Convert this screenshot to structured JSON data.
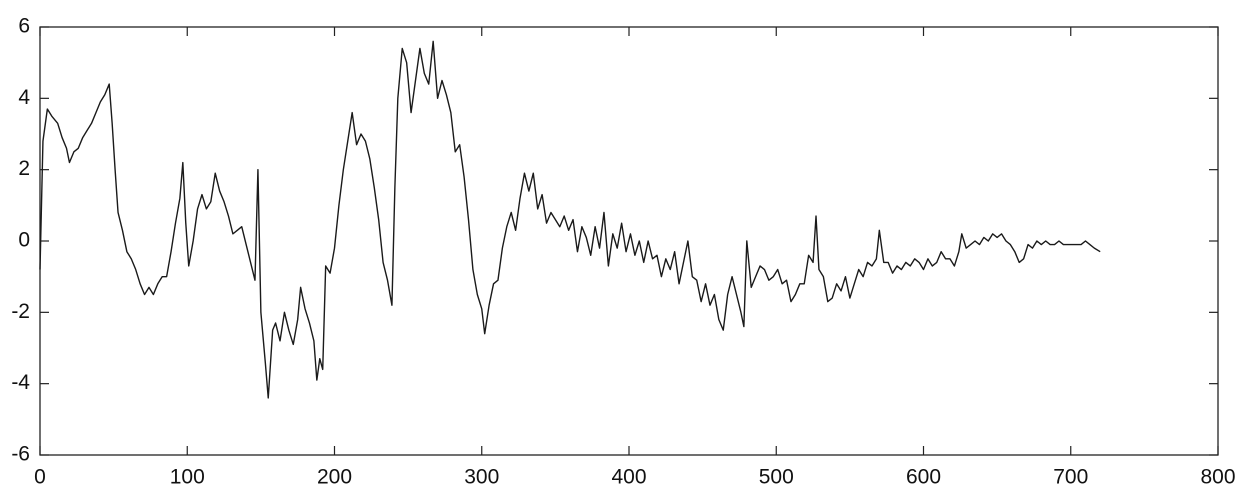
{
  "chart_data": {
    "type": "line",
    "color": "#1a1a1a",
    "x": [
      0,
      2,
      5,
      8,
      12,
      15,
      18,
      20,
      23,
      26,
      29,
      32,
      35,
      38,
      41,
      44,
      47,
      49,
      51,
      53,
      56,
      59,
      62,
      65,
      68,
      71,
      74,
      77,
      80,
      83,
      86,
      89,
      92,
      95,
      97,
      99,
      101,
      104,
      107,
      110,
      113,
      116,
      119,
      122,
      125,
      128,
      131,
      134,
      137,
      140,
      143,
      146,
      148,
      150,
      153,
      155,
      158,
      160,
      163,
      166,
      169,
      172,
      175,
      177,
      180,
      183,
      186,
      188,
      190,
      192,
      194,
      197,
      200,
      203,
      206,
      209,
      212,
      215,
      218,
      221,
      224,
      227,
      230,
      233,
      236,
      239,
      241,
      243,
      246,
      249,
      252,
      255,
      258,
      261,
      264,
      267,
      270,
      273,
      276,
      279,
      282,
      285,
      288,
      291,
      294,
      297,
      300,
      302,
      305,
      308,
      311,
      314,
      317,
      320,
      323,
      326,
      329,
      332,
      335,
      338,
      341,
      344,
      347,
      350,
      353,
      356,
      359,
      362,
      365,
      368,
      371,
      374,
      377,
      380,
      383,
      386,
      389,
      392,
      395,
      398,
      401,
      404,
      407,
      410,
      413,
      416,
      419,
      422,
      425,
      428,
      431,
      434,
      437,
      440,
      443,
      446,
      449,
      452,
      455,
      458,
      461,
      464,
      467,
      470,
      473,
      476,
      478,
      480,
      483,
      486,
      489,
      492,
      495,
      498,
      501,
      504,
      507,
      510,
      513,
      516,
      519,
      522,
      525,
      527,
      529,
      532,
      535,
      538,
      541,
      544,
      547,
      550,
      553,
      556,
      559,
      562,
      565,
      568,
      570,
      573,
      576,
      579,
      582,
      585,
      588,
      591,
      594,
      597,
      600,
      603,
      606,
      609,
      612,
      615,
      618,
      621,
      624,
      626,
      629,
      632,
      635,
      638,
      641,
      644,
      647,
      650,
      653,
      656,
      659,
      662,
      665,
      668,
      671,
      674,
      677,
      680,
      683,
      686,
      689,
      692,
      695,
      698,
      701,
      704,
      707,
      710,
      713,
      716,
      720
    ],
    "values": [
      -0.8,
      2.8,
      3.7,
      3.5,
      3.3,
      2.9,
      2.6,
      2.2,
      2.5,
      2.6,
      2.9,
      3.1,
      3.3,
      3.6,
      3.9,
      4.1,
      4.4,
      3.3,
      2.0,
      0.8,
      0.3,
      -0.3,
      -0.5,
      -0.8,
      -1.2,
      -1.5,
      -1.3,
      -1.5,
      -1.2,
      -1.0,
      -1.0,
      -0.3,
      0.5,
      1.2,
      2.2,
      0.5,
      -0.7,
      0.0,
      0.9,
      1.3,
      0.9,
      1.1,
      1.9,
      1.4,
      1.1,
      0.7,
      0.2,
      0.3,
      0.4,
      -0.1,
      -0.6,
      -1.1,
      2.0,
      -2.0,
      -3.4,
      -4.4,
      -2.5,
      -2.3,
      -2.8,
      -2.0,
      -2.5,
      -2.9,
      -2.2,
      -1.3,
      -1.9,
      -2.3,
      -2.8,
      -3.9,
      -3.3,
      -3.6,
      -0.7,
      -0.9,
      -0.2,
      1.0,
      2.0,
      2.8,
      3.6,
      2.7,
      3.0,
      2.8,
      2.3,
      1.5,
      0.6,
      -0.6,
      -1.1,
      -1.8,
      1.5,
      4.0,
      5.4,
      5.0,
      3.6,
      4.5,
      5.4,
      4.7,
      4.4,
      5.6,
      4.0,
      4.5,
      4.1,
      3.6,
      2.5,
      2.7,
      1.8,
      0.6,
      -0.8,
      -1.5,
      -1.9,
      -2.6,
      -1.8,
      -1.2,
      -1.1,
      -0.2,
      0.4,
      0.8,
      0.3,
      1.2,
      1.9,
      1.4,
      1.9,
      0.9,
      1.3,
      0.5,
      0.8,
      0.6,
      0.4,
      0.7,
      0.3,
      0.6,
      -0.3,
      0.4,
      0.1,
      -0.4,
      0.4,
      -0.2,
      0.8,
      -0.7,
      0.2,
      -0.2,
      0.5,
      -0.3,
      0.2,
      -0.4,
      0.0,
      -0.6,
      0.0,
      -0.5,
      -0.4,
      -1.0,
      -0.5,
      -0.8,
      -0.3,
      -1.2,
      -0.6,
      0.0,
      -1.0,
      -1.1,
      -1.7,
      -1.2,
      -1.8,
      -1.5,
      -2.2,
      -2.5,
      -1.5,
      -1.0,
      -1.5,
      -2.0,
      -2.4,
      0.0,
      -1.3,
      -1.0,
      -0.7,
      -0.8,
      -1.1,
      -1.0,
      -0.8,
      -1.2,
      -1.1,
      -1.7,
      -1.5,
      -1.2,
      -1.2,
      -0.4,
      -0.6,
      0.7,
      -0.8,
      -1.0,
      -1.7,
      -1.6,
      -1.2,
      -1.4,
      -1.0,
      -1.6,
      -1.2,
      -0.8,
      -1.0,
      -0.6,
      -0.7,
      -0.5,
      0.3,
      -0.6,
      -0.6,
      -0.9,
      -0.7,
      -0.8,
      -0.6,
      -0.7,
      -0.5,
      -0.6,
      -0.8,
      -0.5,
      -0.7,
      -0.6,
      -0.3,
      -0.5,
      -0.5,
      -0.7,
      -0.3,
      0.2,
      -0.2,
      -0.1,
      0.0,
      -0.1,
      0.1,
      0.0,
      0.2,
      0.1,
      0.2,
      0.0,
      -0.1,
      -0.3,
      -0.6,
      -0.5,
      -0.1,
      -0.2,
      0.0,
      -0.1,
      0.0,
      -0.1,
      -0.1,
      0.0,
      -0.1,
      -0.1,
      -0.1,
      -0.1,
      -0.1,
      0.0,
      -0.1,
      -0.2,
      -0.3
    ],
    "xlim": [
      0,
      800
    ],
    "xticks": [
      0,
      100,
      200,
      300,
      400,
      500,
      600,
      700,
      800
    ],
    "ylim": [
      -6,
      6
    ],
    "yticks": [
      -6,
      -4,
      -2,
      0,
      2,
      4,
      6
    ],
    "grid": false
  }
}
